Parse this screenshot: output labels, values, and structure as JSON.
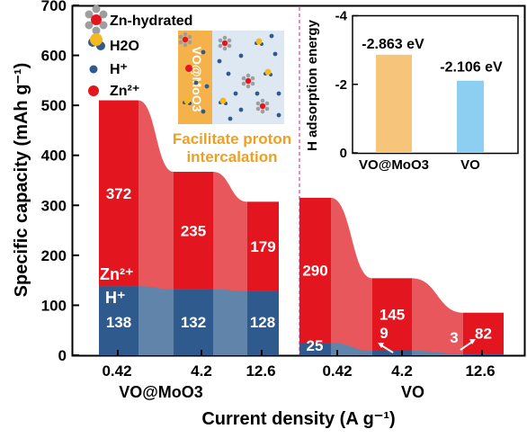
{
  "chart_data": [
    {
      "type": "bar",
      "panel": "VO@MoO3",
      "stacked": true,
      "ylabel": "Specific capacity (mAh g⁻¹)",
      "xlabel": "Current density (A g⁻¹)",
      "ylim": [
        0,
        700
      ],
      "yticks": [
        0,
        100,
        200,
        300,
        400,
        500,
        600,
        700
      ],
      "categories": [
        "0.42",
        "4.2",
        "12.6"
      ],
      "group_label": "VO@MoO3",
      "series": [
        {
          "name": "H⁺",
          "values": [
            138,
            132,
            128
          ],
          "labels": [
            "138",
            "132",
            "128"
          ],
          "color": "#2f5a8e"
        },
        {
          "name": "Zn²⁺",
          "values": [
            372,
            235,
            179
          ],
          "labels": [
            "372",
            "235",
            "179"
          ],
          "color": "#e3161f"
        }
      ],
      "region_labels": {
        "zn": "Zn²⁺",
        "h": "H⁺"
      }
    },
    {
      "type": "bar",
      "panel": "VO",
      "stacked": true,
      "ylim": [
        0,
        700
      ],
      "categories": [
        "0.42",
        "4.2",
        "12.6"
      ],
      "group_label": "VO",
      "series": [
        {
          "name": "H⁺",
          "values": [
            25,
            9,
            3
          ],
          "labels": [
            "25",
            "9",
            "3"
          ],
          "color": "#2f5a8e"
        },
        {
          "name": "Zn²⁺",
          "values": [
            290,
            145,
            82
          ],
          "labels": [
            "290",
            "145",
            "82"
          ],
          "color": "#e3161f"
        }
      ]
    },
    {
      "type": "bar",
      "panel": "inset",
      "ylabel": "H adsorption energy",
      "ylim": [
        0,
        -4
      ],
      "yticks": [
        "0",
        "-2",
        "-4"
      ],
      "categories": [
        "VO@MoO3",
        "VO"
      ],
      "values": [
        -2.863,
        -2.106
      ],
      "labels": [
        "-2.863 eV",
        "-2.106 eV"
      ],
      "colors": [
        "#f7c57a",
        "#8dcff0"
      ]
    }
  ],
  "legend": {
    "items": [
      {
        "label": "Zn-hydrated",
        "icon": "zn-hydrated-icon"
      },
      {
        "label": "H2O",
        "icon": "water-molecule-icon"
      },
      {
        "label": "H⁺",
        "icon": "proton-dot-icon",
        "color": "#2f5a8e"
      },
      {
        "label": "Zn²⁺",
        "icon": "zinc-ion-dot-icon",
        "color": "#e3161f"
      }
    ]
  },
  "schematic": {
    "layer_label": "VO@MoO3",
    "caption_line1": "Facilitate proton",
    "caption_line2": "intercalation",
    "caption_color": "#f0a020"
  },
  "colors": {
    "zn_dark": "#e3161f",
    "zn_light": "#e8575b",
    "h_dark": "#2f5a8e",
    "h_light": "#6184ab",
    "divider": "#d84fa8"
  }
}
